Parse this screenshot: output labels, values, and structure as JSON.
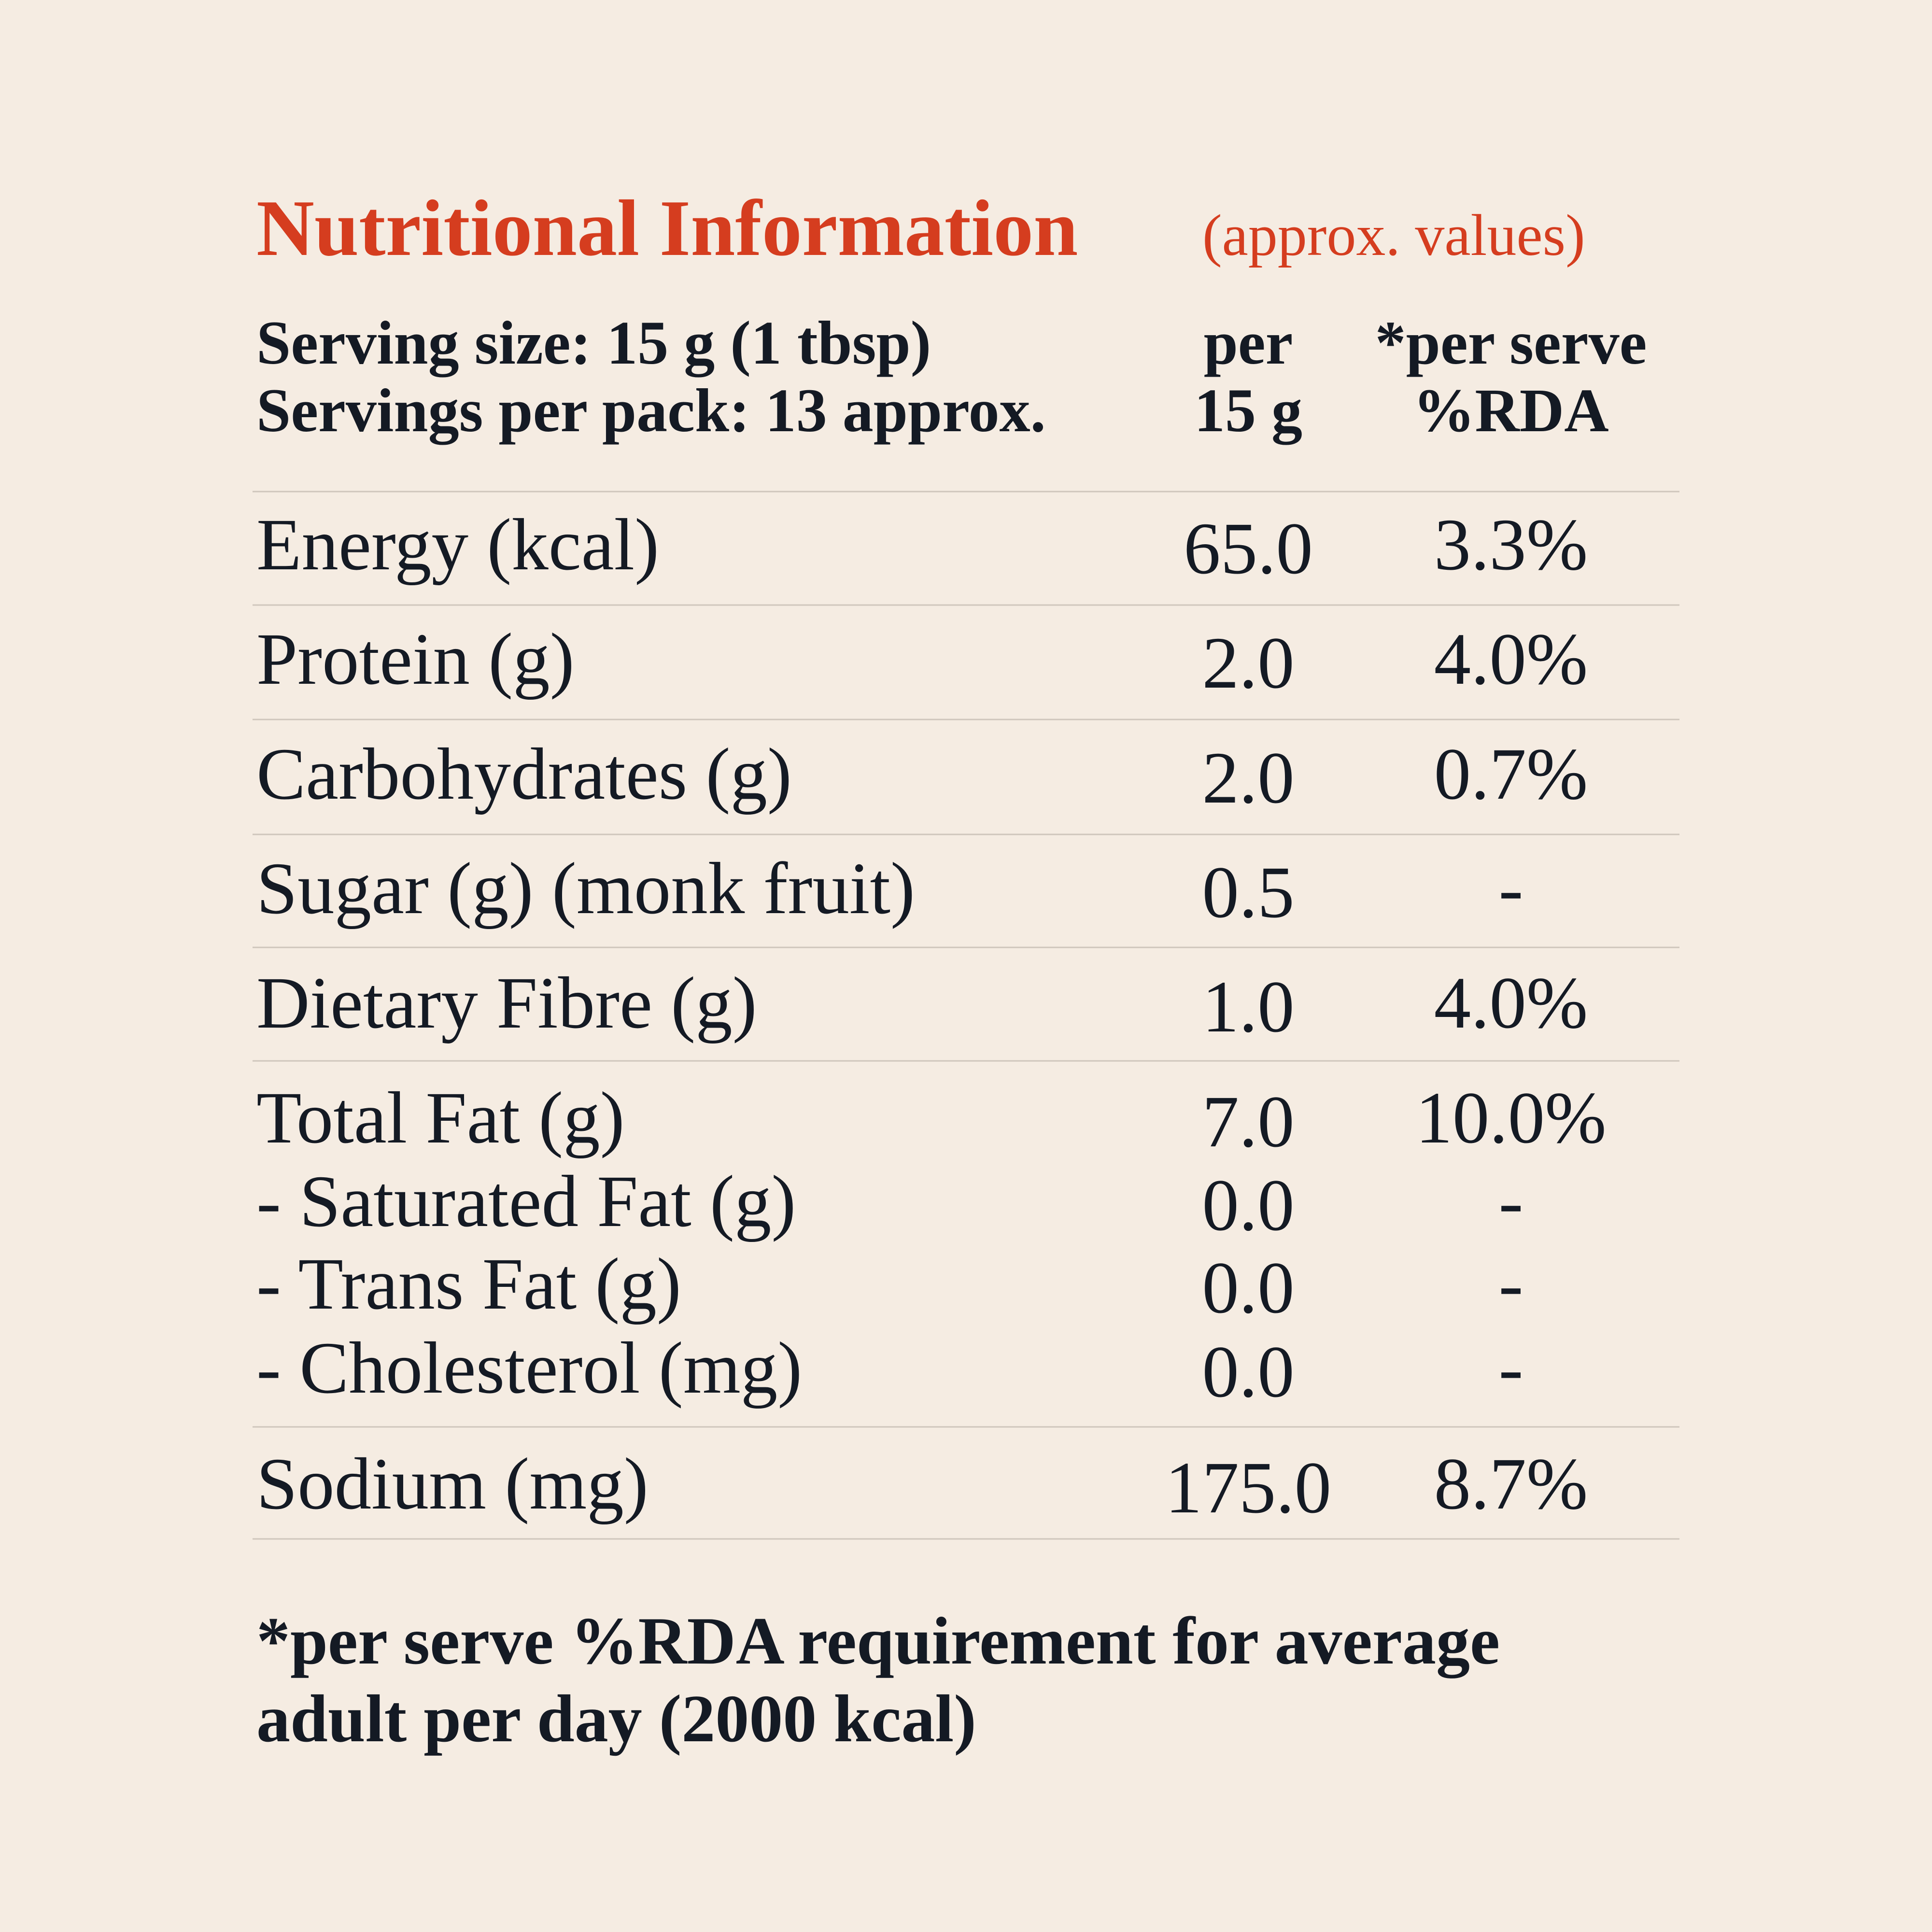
{
  "header": {
    "title": "Nutritional Information",
    "subtitle": "(approx. values)"
  },
  "serving": [
    "Serving size: 15 g (1 tbsp)",
    "Servings per pack: 13 approx."
  ],
  "columns": [
    [
      "per",
      "15 g"
    ],
    [
      "*per serve",
      "%RDA"
    ]
  ],
  "rows": [
    {
      "label": "Energy (kcal)",
      "per_15g": "65.0",
      "rda": "3.3%"
    },
    {
      "label": "Protein (g)",
      "per_15g": "2.0",
      "rda": "4.0%"
    },
    {
      "label": "Carbohydrates (g)",
      "per_15g": "2.0",
      "rda": "0.7%"
    },
    {
      "label": "Sugar (g) (monk fruit)",
      "per_15g": "0.5",
      "rda": "-"
    },
    {
      "label": "Dietary Fibre (g)",
      "per_15g": "1.0",
      "rda": "4.0%"
    },
    {
      "label": "Total Fat (g)",
      "per_15g": "7.0",
      "rda": "10.0%"
    },
    {
      "label": "- Saturated Fat (g)",
      "per_15g": "0.0",
      "rda": "-"
    },
    {
      "label": "- Trans Fat (g)",
      "per_15g": "0.0",
      "rda": "-"
    },
    {
      "label": "- Cholesterol (mg)",
      "per_15g": "0.0",
      "rda": "-"
    },
    {
      "label": "Sodium (mg)",
      "per_15g": "175.0",
      "rda": "8.7%"
    }
  ],
  "footnote": [
    "*per serve %RDA requirement for average",
    "adult per day (2000 kcal)"
  ]
}
